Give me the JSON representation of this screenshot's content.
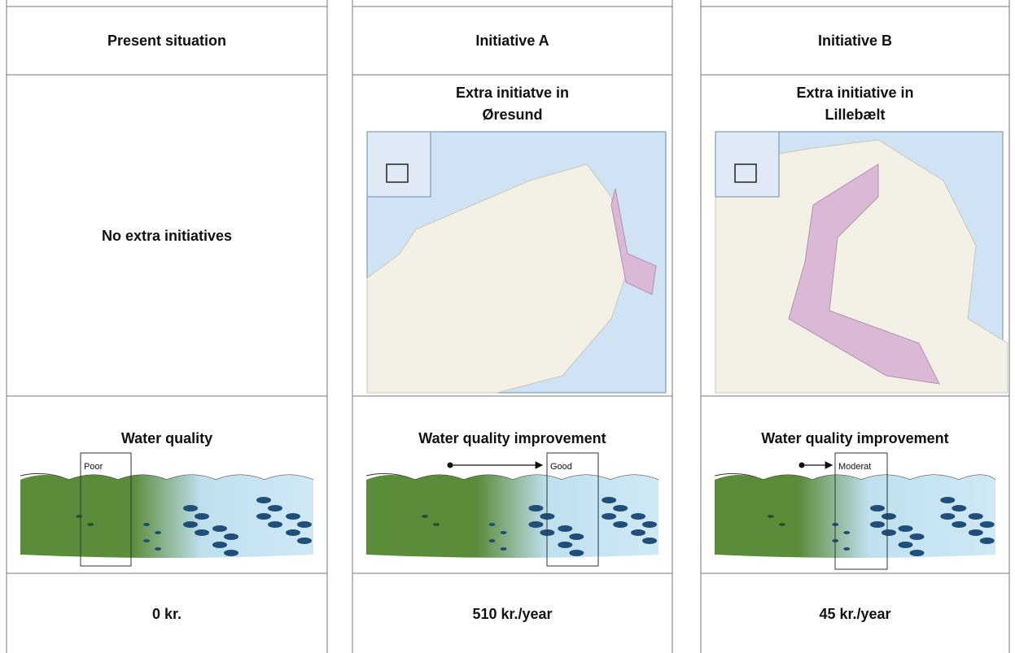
{
  "columns": [
    {
      "header": "Present situation",
      "description": {
        "text": "No extra initiatives"
      },
      "water": {
        "title": "Water quality",
        "marker": "Poor"
      },
      "cost": "0 kr."
    },
    {
      "header": "Initiative A",
      "description": {
        "title_lines": [
          "Extra initiatve in",
          "Øresund"
        ]
      },
      "water": {
        "title": "Water quality improvement",
        "marker": "Good"
      },
      "cost": "510 kr./year"
    },
    {
      "header": "Initiative B",
      "description": {
        "title_lines": [
          "Extra initiative in",
          "Lillebælt"
        ]
      },
      "water": {
        "title": "Water quality improvement",
        "marker": "Moderat"
      },
      "cost": "45 kr./year"
    }
  ]
}
